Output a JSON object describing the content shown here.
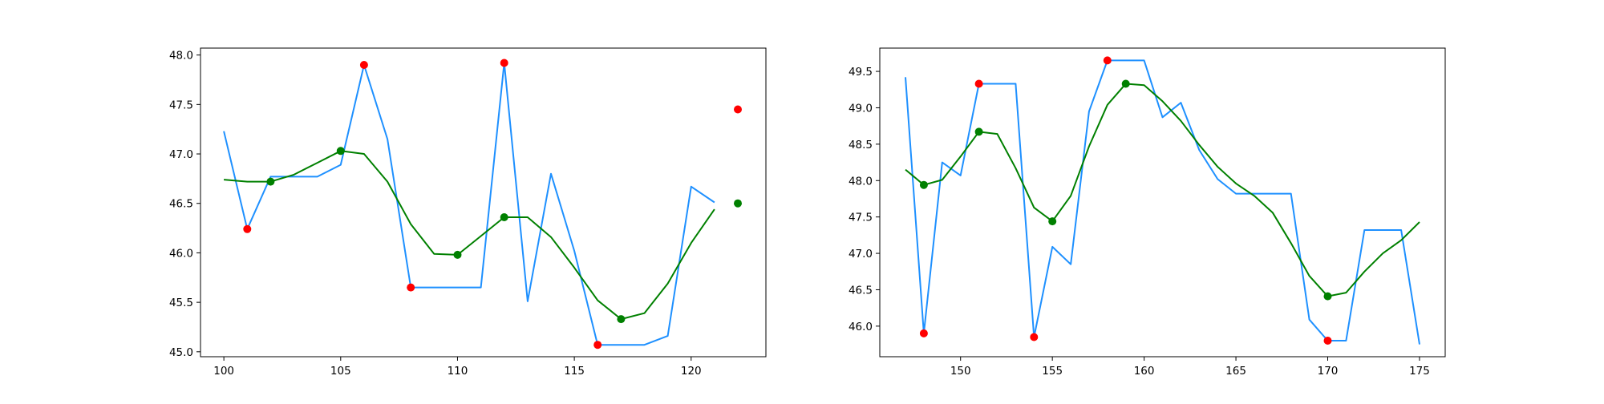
{
  "chart_data": [
    {
      "type": "line",
      "title": "",
      "xlabel": "",
      "ylabel": "",
      "xlim": [
        99,
        123.2
      ],
      "ylim": [
        44.95,
        48.07
      ],
      "xticks": [
        100,
        105,
        110,
        115,
        120
      ],
      "xtick_labels": [
        "100",
        "105",
        "110",
        "115",
        "120"
      ],
      "yticks": [
        45.0,
        45.5,
        46.0,
        46.5,
        47.0,
        47.5,
        48.0
      ],
      "ytick_labels": [
        "45.0",
        "45.5",
        "46.0",
        "46.5",
        "47.0",
        "47.5",
        "48.0"
      ],
      "grid": false,
      "series": [
        {
          "kind": "line",
          "color": "#1e90ff",
          "x": [
            100,
            101,
            102,
            103,
            104,
            105,
            106,
            107,
            108,
            109,
            110,
            111,
            112,
            113,
            114,
            115,
            116,
            117,
            118,
            119,
            120,
            121
          ],
          "y": [
            47.23,
            46.24,
            46.77,
            46.77,
            46.77,
            46.89,
            47.9,
            47.15,
            45.65,
            45.65,
            45.65,
            45.65,
            47.92,
            45.51,
            46.8,
            46.02,
            45.07,
            45.07,
            45.07,
            45.16,
            46.67,
            46.51
          ]
        },
        {
          "kind": "line",
          "color": "#008000",
          "x": [
            100,
            101,
            102,
            103,
            104,
            105,
            106,
            107,
            108,
            109,
            110,
            111,
            112,
            113,
            114,
            115,
            116,
            117,
            118,
            119,
            120,
            121
          ],
          "y": [
            46.74,
            46.72,
            46.72,
            46.79,
            46.91,
            47.03,
            47.0,
            46.72,
            46.29,
            45.99,
            45.98,
            46.17,
            46.36,
            46.36,
            46.16,
            45.85,
            45.52,
            45.33,
            45.39,
            45.69,
            46.1,
            46.44
          ]
        },
        {
          "kind": "scatter",
          "color": "#ff0000",
          "x": [
            101,
            106,
            108,
            112,
            116,
            122
          ],
          "y": [
            46.24,
            47.9,
            45.65,
            47.92,
            45.07,
            47.45
          ]
        },
        {
          "kind": "scatter",
          "color": "#008000",
          "x": [
            102,
            105,
            110,
            112,
            117,
            122
          ],
          "y": [
            46.72,
            47.03,
            45.98,
            46.36,
            45.33,
            46.5
          ]
        }
      ]
    },
    {
      "type": "line",
      "title": "",
      "xlabel": "",
      "ylabel": "",
      "xlim": [
        145.6,
        176.4
      ],
      "ylim": [
        45.58,
        49.82
      ],
      "xticks": [
        150,
        155,
        160,
        165,
        170,
        175
      ],
      "xtick_labels": [
        "150",
        "155",
        "160",
        "165",
        "170",
        "175"
      ],
      "yticks": [
        46.0,
        46.5,
        47.0,
        47.5,
        48.0,
        48.5,
        49.0,
        49.5
      ],
      "ytick_labels": [
        "46.0",
        "46.5",
        "47.0",
        "47.5",
        "48.0",
        "48.5",
        "49.0",
        "49.5"
      ],
      "grid": false,
      "series": [
        {
          "kind": "line",
          "color": "#1e90ff",
          "x": [
            147,
            148,
            149,
            150,
            151,
            152,
            153,
            154,
            155,
            156,
            157,
            158,
            159,
            160,
            161,
            162,
            163,
            164,
            165,
            166,
            167,
            168,
            169,
            170,
            171,
            172,
            173,
            174,
            175
          ],
          "y": [
            49.42,
            45.9,
            48.25,
            48.07,
            49.33,
            49.33,
            49.33,
            45.85,
            47.09,
            46.85,
            48.95,
            49.65,
            49.65,
            49.65,
            48.87,
            49.07,
            48.42,
            48.02,
            47.82,
            47.82,
            47.82,
            47.82,
            46.09,
            45.8,
            45.8,
            47.32,
            47.32,
            47.32,
            45.75
          ]
        },
        {
          "kind": "line",
          "color": "#008000",
          "x": [
            147,
            148,
            149,
            150,
            151,
            152,
            153,
            154,
            155,
            156,
            157,
            158,
            159,
            160,
            161,
            162,
            163,
            164,
            165,
            166,
            167,
            168,
            169,
            170,
            171,
            172,
            173,
            174,
            175
          ],
          "y": [
            48.15,
            47.94,
            48.01,
            48.33,
            48.67,
            48.64,
            48.17,
            47.63,
            47.44,
            47.79,
            48.47,
            49.04,
            49.33,
            49.31,
            49.09,
            48.82,
            48.49,
            48.19,
            47.96,
            47.79,
            47.56,
            47.14,
            46.69,
            46.41,
            46.46,
            46.75,
            47.0,
            47.18,
            47.43
          ]
        },
        {
          "kind": "scatter",
          "color": "#ff0000",
          "x": [
            148,
            151,
            154,
            158,
            170
          ],
          "y": [
            45.9,
            49.33,
            45.85,
            49.65,
            45.8
          ]
        },
        {
          "kind": "scatter",
          "color": "#008000",
          "x": [
            148,
            151,
            155,
            159,
            170
          ],
          "y": [
            47.94,
            48.67,
            47.44,
            49.33,
            46.41
          ]
        }
      ]
    }
  ]
}
